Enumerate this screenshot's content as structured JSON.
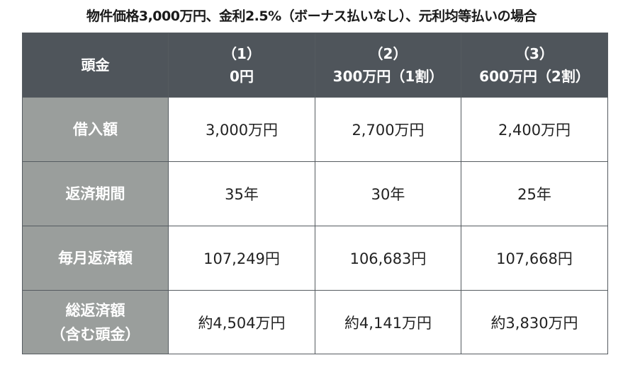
{
  "caption": "物件価格3,000万円、金利2.5%（ボーナス払いなし）、元利均等払いの場合",
  "header": {
    "corner_label": "頭金",
    "columns": [
      {
        "line1": "（1）",
        "line2": "0円"
      },
      {
        "line1": "（2）",
        "line2": "300万円（1割）"
      },
      {
        "line1": "（3）",
        "line2": "600万円（2割）"
      }
    ]
  },
  "rows": [
    {
      "label_line1": "借入額",
      "label_line2": "",
      "values": [
        "3,000万円",
        "2,700万円",
        "2,400万円"
      ]
    },
    {
      "label_line1": "返済期間",
      "label_line2": "",
      "values": [
        "35年",
        "30年",
        "25年"
      ]
    },
    {
      "label_line1": "毎月返済額",
      "label_line2": "",
      "values": [
        "107,249円",
        "106,683円",
        "107,668円"
      ]
    },
    {
      "label_line1": "総返済額",
      "label_line2": "（含む頭金）",
      "values": [
        "約4,504万円",
        "約4,141万円",
        "約3,830万円"
      ]
    }
  ],
  "colors": {
    "header_bg": "#4f555b",
    "rowhead_bg": "#9a9e9c",
    "cell_bg": "#ffffff"
  }
}
